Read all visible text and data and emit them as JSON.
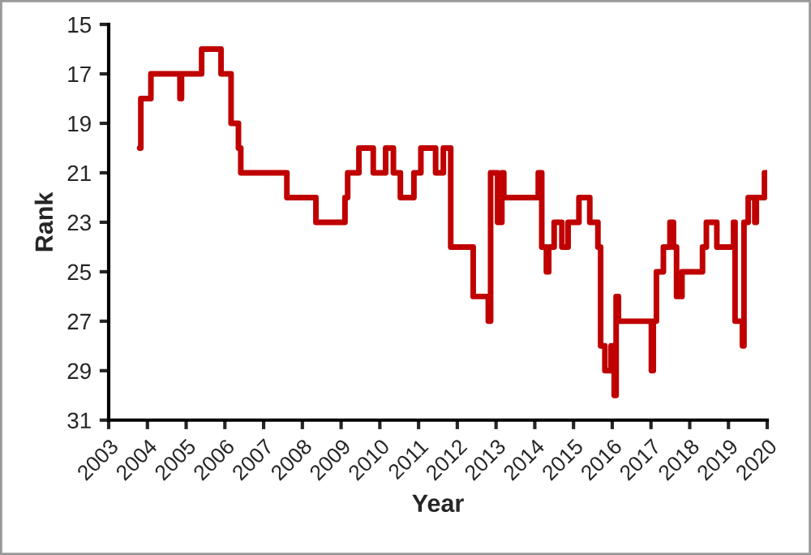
{
  "chart_data": {
    "type": "step",
    "xlabel": "Year",
    "ylabel": "Rank",
    "x": [
      2003.8,
      2003.83,
      2004.09,
      2004.84,
      2004.88,
      2005.4,
      2005.9,
      2006.16,
      2006.35,
      2006.41,
      2007.6,
      2008.35,
      2009.1,
      2009.17,
      2009.46,
      2009.83,
      2010.15,
      2010.35,
      2010.53,
      2010.88,
      2011.06,
      2011.44,
      2011.64,
      2011.83,
      2012.41,
      2012.8,
      2012.86,
      2013.04,
      2013.15,
      2013.2,
      2014.09,
      2014.18,
      2014.3,
      2014.36,
      2014.5,
      2014.7,
      2014.86,
      2015.14,
      2015.42,
      2015.63,
      2015.7,
      2015.81,
      2015.97,
      2016.05,
      2016.1,
      2016.16,
      2017.01,
      2017.06,
      2017.14,
      2017.32,
      2017.49,
      2017.58,
      2017.66,
      2017.8,
      2018.33,
      2018.43,
      2018.7,
      2019.13,
      2019.17,
      2019.36,
      2019.4,
      2019.51,
      2019.68,
      2019.72,
      2019.93,
      2020.0
    ],
    "values": [
      20,
      18,
      17,
      18,
      17,
      16,
      17,
      19,
      20,
      21,
      22,
      23,
      22,
      21,
      20,
      21,
      20,
      21,
      22,
      21,
      20,
      21,
      20,
      24,
      26,
      27,
      21,
      23,
      21,
      22,
      21,
      24,
      25,
      24,
      23,
      24,
      23,
      22,
      23,
      24,
      28,
      29,
      28,
      30,
      26,
      27,
      29,
      27,
      25,
      24,
      23,
      24,
      26,
      25,
      24,
      23,
      24,
      23,
      27,
      28,
      23,
      22,
      23,
      22,
      21,
      21
    ],
    "color": "#c00000",
    "xlim": [
      2003,
      2020
    ],
    "xticks": [
      2003,
      2004,
      2005,
      2006,
      2007,
      2008,
      2009,
      2010,
      2011,
      2012,
      2013,
      2014,
      2015,
      2016,
      2017,
      2018,
      2019,
      2020
    ],
    "ylim": [
      31,
      15
    ],
    "yticks": [
      15,
      17,
      19,
      21,
      23,
      25,
      27,
      29,
      31
    ],
    "grid": false
  }
}
